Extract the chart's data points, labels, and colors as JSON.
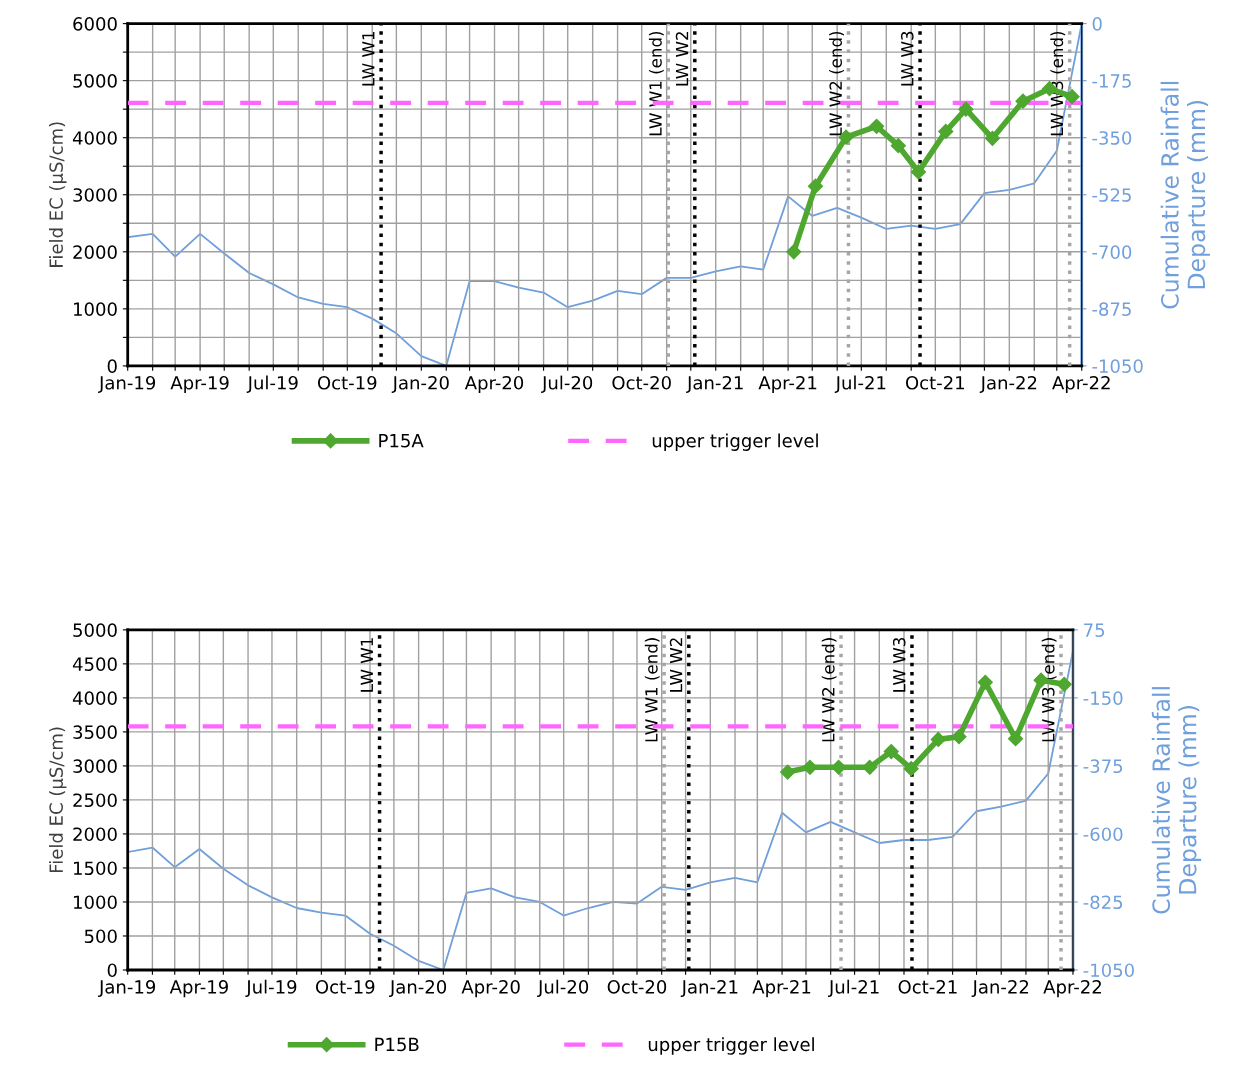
{
  "chart_data": [
    {
      "type": "line",
      "ylabel": "Field EC (µS/cm)",
      "y2label": "Cumulative Rainfall\nDeparture (mm)",
      "xlim": [
        "2019-01-01",
        "2022-04-01"
      ],
      "xticks": [
        {
          "value": "2019-01-01",
          "label": "Jan-19"
        },
        {
          "value": "2019-02-01",
          "label": null
        },
        {
          "value": "2019-03-01",
          "label": null
        },
        {
          "value": "2019-04-01",
          "label": "Apr-19"
        },
        {
          "value": "2019-05-01",
          "label": null
        },
        {
          "value": "2019-06-01",
          "label": null
        },
        {
          "value": "2019-07-01",
          "label": "Jul-19"
        },
        {
          "value": "2019-08-01",
          "label": null
        },
        {
          "value": "2019-09-01",
          "label": null
        },
        {
          "value": "2019-10-01",
          "label": "Oct-19"
        },
        {
          "value": "2019-11-01",
          "label": null
        },
        {
          "value": "2019-12-01",
          "label": null
        },
        {
          "value": "2020-01-01",
          "label": "Jan-20"
        },
        {
          "value": "2020-02-01",
          "label": null
        },
        {
          "value": "2020-03-01",
          "label": null
        },
        {
          "value": "2020-04-01",
          "label": "Apr-20"
        },
        {
          "value": "2020-05-01",
          "label": null
        },
        {
          "value": "2020-06-01",
          "label": null
        },
        {
          "value": "2020-07-01",
          "label": "Jul-20"
        },
        {
          "value": "2020-08-01",
          "label": null
        },
        {
          "value": "2020-09-01",
          "label": null
        },
        {
          "value": "2020-10-01",
          "label": "Oct-20"
        },
        {
          "value": "2020-11-01",
          "label": null
        },
        {
          "value": "2020-12-01",
          "label": null
        },
        {
          "value": "2021-01-01",
          "label": "Jan-21"
        },
        {
          "value": "2021-02-01",
          "label": null
        },
        {
          "value": "2021-03-01",
          "label": null
        },
        {
          "value": "2021-04-01",
          "label": "Apr-21"
        },
        {
          "value": "2021-05-01",
          "label": null
        },
        {
          "value": "2021-06-01",
          "label": null
        },
        {
          "value": "2021-07-01",
          "label": "Jul-21"
        },
        {
          "value": "2021-08-01",
          "label": null
        },
        {
          "value": "2021-09-01",
          "label": null
        },
        {
          "value": "2021-10-01",
          "label": "Oct-21"
        },
        {
          "value": "2021-11-01",
          "label": null
        },
        {
          "value": "2021-12-01",
          "label": null
        },
        {
          "value": "2022-01-01",
          "label": "Jan-22"
        },
        {
          "value": "2022-02-01",
          "label": null
        },
        {
          "value": "2022-03-01",
          "label": null
        },
        {
          "value": "2022-04-01",
          "label": "Apr-22"
        }
      ],
      "ylim": [
        0,
        6000
      ],
      "yticks": [
        0,
        {
          "value": 500,
          "label": null
        },
        1000,
        {
          "value": 1500,
          "label": null
        },
        2000,
        {
          "value": 2500,
          "label": null
        },
        3000,
        {
          "value": 3500,
          "label": null
        },
        4000,
        {
          "value": 4500,
          "label": null
        },
        5000,
        {
          "value": 5500,
          "label": null
        },
        6000
      ],
      "y2lim": [
        -1050,
        0
      ],
      "y2ticks": [
        -1050,
        -875,
        -700,
        -525,
        -350,
        -175,
        0
      ],
      "grid": true,
      "legend": "bottom",
      "series": [
        {
          "name": "P15A",
          "color": "#4ea72e",
          "marker": "diamond",
          "line_style": "solid",
          "x": [
            "2021-04-08",
            "2021-05-05",
            "2021-06-12",
            "2021-07-20",
            "2021-08-16",
            "2021-09-10",
            "2021-10-14",
            "2021-11-08",
            "2021-12-11",
            "2022-01-18",
            "2022-02-20",
            "2022-03-20"
          ],
          "values": [
            2000,
            3150,
            4010,
            4200,
            3860,
            3400,
            4110,
            4500,
            3990,
            4640,
            4860,
            4720
          ]
        },
        {
          "name": "upper trigger level",
          "color": "#ff66ff",
          "marker": "none",
          "line_style": "dashed",
          "x": [
            "2019-01-01",
            "2022-04-01"
          ],
          "values": [
            4610,
            4610
          ]
        },
        {
          "color": "#6f9fdc",
          "axis": "y2",
          "marker": "none",
          "line_style": "solid",
          "x": [
            "2019-01-01",
            "2019-02-01",
            "2019-03-01",
            "2019-04-01",
            "2019-05-01",
            "2019-06-01",
            "2019-07-01",
            "2019-08-01",
            "2019-09-01",
            "2019-10-01",
            "2019-11-01",
            "2019-12-01",
            "2020-01-01",
            "2020-02-01",
            "2020-03-01",
            "2020-04-01",
            "2020-05-01",
            "2020-06-01",
            "2020-07-01",
            "2020-08-01",
            "2020-09-01",
            "2020-10-01",
            "2020-11-01",
            "2020-12-01",
            "2021-01-01",
            "2021-02-01",
            "2021-03-01",
            "2021-04-01",
            "2021-05-01",
            "2021-06-01",
            "2021-07-01",
            "2021-08-01",
            "2021-09-01",
            "2021-10-01",
            "2021-11-01",
            "2021-12-01",
            "2022-01-01",
            "2022-02-01",
            "2022-03-01",
            "2022-04-01"
          ],
          "values": [
            -655,
            -645,
            -715,
            -645,
            -705,
            -765,
            -800,
            -840,
            -860,
            -870,
            -905,
            -950,
            -1020,
            -1050,
            -790,
            -790,
            -810,
            -825,
            -870,
            -850,
            -820,
            -830,
            -780,
            -780,
            -760,
            -745,
            -755,
            -530,
            -590,
            -565,
            -595,
            -630,
            -620,
            -630,
            -615,
            -520,
            -510,
            -490,
            -390,
            0
          ]
        }
      ],
      "ref_lines": [
        {
          "axis": "x",
          "value": "2019-11-12",
          "label": "LW W1",
          "color": "#000000",
          "line_style": "dotted"
        },
        {
          "axis": "x",
          "value": "2020-11-03",
          "label": "LW W1 (end)",
          "color": "#a6a6a6",
          "line_style": "dotted"
        },
        {
          "axis": "x",
          "value": "2020-12-06",
          "label": "LW W2",
          "color": "#000000",
          "line_style": "dotted"
        },
        {
          "axis": "x",
          "value": "2021-06-15",
          "label": "LW W2 (end)",
          "color": "#a6a6a6",
          "line_style": "dotted"
        },
        {
          "axis": "x",
          "value": "2021-09-12",
          "label": "LW W3",
          "color": "#000000",
          "line_style": "dotted"
        },
        {
          "axis": "x",
          "value": "2022-03-17",
          "label": "LW W3 (end)",
          "color": "#a6a6a6",
          "line_style": "dotted"
        }
      ]
    },
    {
      "type": "line",
      "ylabel": "Field EC (µS/cm)",
      "y2label": "Cumulative Rainfall\nDeparture (mm)",
      "xlim": [
        "2019-01-01",
        "2022-04-01"
      ],
      "xticks": [
        {
          "value": "2019-01-01",
          "label": "Jan-19"
        },
        {
          "value": "2019-02-01",
          "label": null
        },
        {
          "value": "2019-03-01",
          "label": null
        },
        {
          "value": "2019-04-01",
          "label": "Apr-19"
        },
        {
          "value": "2019-05-01",
          "label": null
        },
        {
          "value": "2019-06-01",
          "label": null
        },
        {
          "value": "2019-07-01",
          "label": "Jul-19"
        },
        {
          "value": "2019-08-01",
          "label": null
        },
        {
          "value": "2019-09-01",
          "label": null
        },
        {
          "value": "2019-10-01",
          "label": "Oct-19"
        },
        {
          "value": "2019-11-01",
          "label": null
        },
        {
          "value": "2019-12-01",
          "label": null
        },
        {
          "value": "2020-01-01",
          "label": "Jan-20"
        },
        {
          "value": "2020-02-01",
          "label": null
        },
        {
          "value": "2020-03-01",
          "label": null
        },
        {
          "value": "2020-04-01",
          "label": "Apr-20"
        },
        {
          "value": "2020-05-01",
          "label": null
        },
        {
          "value": "2020-06-01",
          "label": null
        },
        {
          "value": "2020-07-01",
          "label": "Jul-20"
        },
        {
          "value": "2020-08-01",
          "label": null
        },
        {
          "value": "2020-09-01",
          "label": null
        },
        {
          "value": "2020-10-01",
          "label": "Oct-20"
        },
        {
          "value": "2020-11-01",
          "label": null
        },
        {
          "value": "2020-12-01",
          "label": null
        },
        {
          "value": "2021-01-01",
          "label": "Jan-21"
        },
        {
          "value": "2021-02-01",
          "label": null
        },
        {
          "value": "2021-03-01",
          "label": null
        },
        {
          "value": "2021-04-01",
          "label": "Apr-21"
        },
        {
          "value": "2021-05-01",
          "label": null
        },
        {
          "value": "2021-06-01",
          "label": null
        },
        {
          "value": "2021-07-01",
          "label": "Jul-21"
        },
        {
          "value": "2021-08-01",
          "label": null
        },
        {
          "value": "2021-09-01",
          "label": null
        },
        {
          "value": "2021-10-01",
          "label": "Oct-21"
        },
        {
          "value": "2021-11-01",
          "label": null
        },
        {
          "value": "2021-12-01",
          "label": null
        },
        {
          "value": "2022-01-01",
          "label": "Jan-22"
        },
        {
          "value": "2022-02-01",
          "label": null
        },
        {
          "value": "2022-03-01",
          "label": null
        },
        {
          "value": "2022-04-01",
          "label": "Apr-22"
        }
      ],
      "ylim": [
        0,
        5000
      ],
      "yticks": [
        0,
        500,
        1000,
        1500,
        2000,
        2500,
        3000,
        3500,
        4000,
        4500,
        5000
      ],
      "y2lim": [
        -1050,
        75
      ],
      "y2ticks": [
        -1050,
        -825,
        -600,
        -375,
        -150,
        75
      ],
      "grid": true,
      "legend": "bottom",
      "series": [
        {
          "name": "P15B",
          "color": "#4ea72e",
          "marker": "diamond",
          "line_style": "solid",
          "x": [
            "2021-04-08",
            "2021-05-06",
            "2021-06-11",
            "2021-07-20",
            "2021-08-16",
            "2021-09-10",
            "2021-10-14",
            "2021-11-09",
            "2021-12-12",
            "2022-01-19",
            "2022-02-20",
            "2022-03-21"
          ],
          "values": [
            2910,
            2980,
            2980,
            2980,
            3210,
            2960,
            3390,
            3430,
            4230,
            3400,
            4260,
            4200
          ]
        },
        {
          "name": "upper trigger level",
          "color": "#ff66ff",
          "marker": "none",
          "line_style": "dashed",
          "x": [
            "2019-01-01",
            "2022-04-01"
          ],
          "values": [
            3580,
            3580
          ]
        },
        {
          "color": "#6f9fdc",
          "axis": "y2",
          "marker": "none",
          "line_style": "solid",
          "x": [
            "2019-01-01",
            "2019-02-01",
            "2019-03-01",
            "2019-04-01",
            "2019-05-01",
            "2019-06-01",
            "2019-07-01",
            "2019-08-01",
            "2019-09-01",
            "2019-10-01",
            "2019-11-01",
            "2019-12-01",
            "2020-01-01",
            "2020-02-01",
            "2020-03-01",
            "2020-04-01",
            "2020-05-01",
            "2020-06-01",
            "2020-07-01",
            "2020-08-01",
            "2020-09-01",
            "2020-10-01",
            "2020-11-01",
            "2020-12-01",
            "2021-01-01",
            "2021-02-01",
            "2021-03-01",
            "2021-04-01",
            "2021-05-01",
            "2021-06-01",
            "2021-07-01",
            "2021-08-01",
            "2021-09-01",
            "2021-10-01",
            "2021-11-01",
            "2021-12-01",
            "2022-01-01",
            "2022-02-01",
            "2022-03-01",
            "2022-04-01"
          ],
          "values": [
            -660,
            -645,
            -710,
            -650,
            -715,
            -770,
            -810,
            -845,
            -860,
            -870,
            -930,
            -970,
            -1020,
            -1050,
            -795,
            -780,
            -810,
            -825,
            -870,
            -845,
            -825,
            -830,
            -775,
            -785,
            -760,
            -745,
            -760,
            -530,
            -595,
            -560,
            -595,
            -630,
            -620,
            -620,
            -610,
            -525,
            -510,
            -490,
            -400,
            5
          ]
        }
      ],
      "ref_lines": [
        {
          "axis": "x",
          "value": "2019-11-13",
          "label": "LW W1",
          "color": "#000000",
          "line_style": "dotted"
        },
        {
          "axis": "x",
          "value": "2020-11-04",
          "label": "LW W1 (end)",
          "color": "#a6a6a6",
          "line_style": "dotted"
        },
        {
          "axis": "x",
          "value": "2020-12-05",
          "label": "LW W2",
          "color": "#000000",
          "line_style": "dotted"
        },
        {
          "axis": "x",
          "value": "2021-06-14",
          "label": "LW W2 (end)",
          "color": "#a6a6a6",
          "line_style": "dotted"
        },
        {
          "axis": "x",
          "value": "2021-09-11",
          "label": "LW W3",
          "color": "#000000",
          "line_style": "dotted"
        },
        {
          "axis": "x",
          "value": "2022-03-17",
          "label": "LW W3 (end)",
          "color": "#a6a6a6",
          "line_style": "dotted"
        }
      ]
    }
  ]
}
